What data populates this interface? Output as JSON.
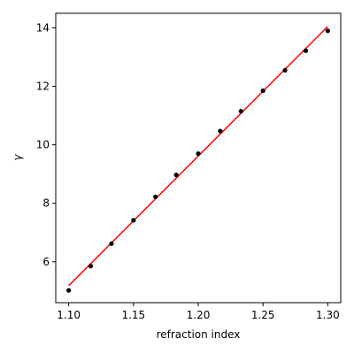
{
  "chart_data": {
    "type": "scatter",
    "title": "",
    "xlabel": "refraction index",
    "ylabel": "γ",
    "xlim": [
      1.09,
      1.31
    ],
    "ylim": [
      4.6,
      14.5
    ],
    "x_ticks": [
      1.1,
      1.15,
      1.2,
      1.25,
      1.3
    ],
    "x_tick_labels": [
      "1.10",
      "1.15",
      "1.20",
      "1.25",
      "1.30"
    ],
    "y_ticks": [
      6,
      8,
      10,
      12,
      14
    ],
    "y_tick_labels": [
      "6",
      "8",
      "10",
      "12",
      "14"
    ],
    "grid": false,
    "legend": "none",
    "series": [
      {
        "kind": "points",
        "color": "#000000",
        "x": [
          1.1,
          1.117,
          1.133,
          1.15,
          1.167,
          1.183,
          1.2,
          1.217,
          1.233,
          1.25,
          1.267,
          1.283,
          1.3
        ],
        "y": [
          5.02,
          5.85,
          6.62,
          7.42,
          8.22,
          8.97,
          9.7,
          10.47,
          11.15,
          11.85,
          12.55,
          13.22,
          13.9
        ]
      },
      {
        "kind": "fit-line",
        "color": "#ff0000",
        "x": [
          1.1,
          1.3
        ],
        "y": [
          5.18,
          14.05
        ]
      }
    ]
  }
}
